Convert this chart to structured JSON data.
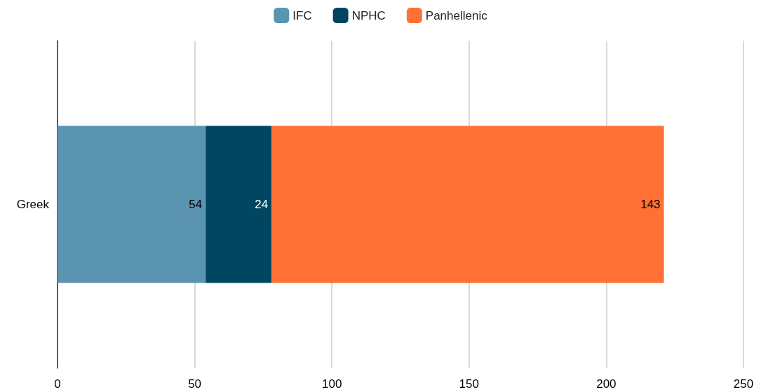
{
  "chart_data": {
    "type": "bar",
    "orientation": "horizontal",
    "stacked": true,
    "categories": [
      "Greek"
    ],
    "series": [
      {
        "name": "IFC",
        "color": "#5b94b1",
        "values": [
          54
        ]
      },
      {
        "name": "NPHC",
        "color": "#004661",
        "values": [
          24
        ]
      },
      {
        "name": "Panhellenic",
        "color": "#ff7034",
        "values": [
          143
        ]
      }
    ],
    "xlim": [
      0,
      250
    ],
    "xticks": [
      0,
      50,
      100,
      150,
      200,
      250
    ],
    "grid": "x",
    "legend": "top",
    "data_labels": true
  }
}
